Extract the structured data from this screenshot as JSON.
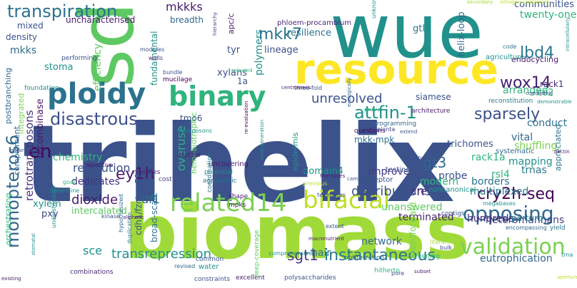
{
  "words": [
    {
      "text": "trihelix",
      "color": "#3b528b"
    },
    {
      "text": "biomass",
      "color": "#a0da39"
    },
    {
      "text": "wue",
      "color": "#21918c"
    },
    {
      "text": "sdd1",
      "color": "#5ec962"
    },
    {
      "text": "resource",
      "color": "#fde725"
    },
    {
      "text": "ploidy",
      "color": "#2c728e"
    },
    {
      "text": "binary",
      "color": "#2fb47c"
    },
    {
      "text": "related14",
      "color": "#7ad151"
    },
    {
      "text": "bifacial",
      "color": "#bddf26"
    },
    {
      "text": "validation",
      "color": "#7ad151"
    },
    {
      "text": "opposing",
      "color": "#31688e"
    },
    {
      "text": "transpiration",
      "color": "#2c728e"
    },
    {
      "text": "monopteros6",
      "color": "#31688e"
    },
    {
      "text": "disastrous",
      "color": "#3b528b"
    },
    {
      "text": "attfin-1",
      "color": "#21918c"
    },
    {
      "text": "instantaneous",
      "color": "#2a788e"
    },
    {
      "text": "cry2h-seq",
      "color": "#440154"
    },
    {
      "text": "distribution1",
      "color": "#3b528b"
    },
    {
      "text": "wox14",
      "color": "#481f70"
    },
    {
      "text": "sparsely",
      "color": "#3b528b"
    },
    {
      "text": "lbd4",
      "color": "#2a788e"
    },
    {
      "text": "mkk7",
      "color": "#2c728e"
    },
    {
      "text": "ey1h",
      "color": "#481a6c"
    },
    {
      "text": "gt3",
      "color": "#31688e"
    },
    {
      "text": "sgt1",
      "color": "#443983"
    },
    {
      "text": "transrepression",
      "color": "#21918c"
    },
    {
      "text": "dioxide",
      "color": "#481a6c"
    },
    {
      "text": "en",
      "color": "#440154"
    },
    {
      "text": "df1",
      "color": "#31688e"
    },
    {
      "text": "revolution",
      "color": "#3b528b"
    },
    {
      "text": "overuse",
      "color": "#2fb47c"
    },
    {
      "text": "unresolved",
      "color": "#3b528b"
    },
    {
      "text": "retrotransposons",
      "color": "#46327e"
    },
    {
      "text": "heteromannans",
      "color": "#414487"
    },
    {
      "text": "eutrophication",
      "color": "#31688e"
    },
    {
      "text": "mkkks",
      "color": "#481a6c"
    },
    {
      "text": "shuffling",
      "color": "#7ad151"
    },
    {
      "text": "arranged",
      "color": "#2fb47c"
    },
    {
      "text": "sce",
      "color": "#21918c"
    },
    {
      "text": "cdh1/fzr/ccs52",
      "color": "#3b528b"
    },
    {
      "text": "broad-scale",
      "color": "#2c728e"
    },
    {
      "text": "hundreds",
      "color": "#482878"
    },
    {
      "text": "mkks",
      "color": "#2c728e"
    },
    {
      "text": "unanswered",
      "color": "#5ec962"
    },
    {
      "text": "conduct",
      "color": "#2c728e"
    },
    {
      "text": "polymers",
      "color": "#21918c"
    },
    {
      "text": "trnas",
      "color": "#2a788e"
    },
    {
      "text": "rsl4",
      "color": "#2fb47c"
    },
    {
      "text": "mapping",
      "color": "#21918c"
    },
    {
      "text": "probe",
      "color": "#3b528b"
    },
    {
      "text": "borders",
      "color": "#2c728e"
    },
    {
      "text": "rack1a",
      "color": "#2fb47c"
    },
    {
      "text": "vital",
      "color": "#31688e"
    },
    {
      "text": "hair",
      "color": "#2c728e"
    },
    {
      "text": "network",
      "color": "#31688e"
    },
    {
      "text": "terminated",
      "color": "#481f70"
    },
    {
      "text": "improve",
      "color": "#443983"
    },
    {
      "text": "modern",
      "color": "#2fb47c"
    },
    {
      "text": "multiplexed",
      "color": "#2a788e"
    },
    {
      "text": "recombinase",
      "color": "#481a6c"
    },
    {
      "text": "dedicates",
      "color": "#46327e"
    },
    {
      "text": "chemistry",
      "color": "#2fb47c"
    },
    {
      "text": "twenty-one",
      "color": "#2fb47c"
    },
    {
      "text": "communities",
      "color": "#3b528b"
    },
    {
      "text": "gtl",
      "color": "#2c728e"
    },
    {
      "text": "helix-loop",
      "color": "#31688e"
    },
    {
      "text": "resilience",
      "color": "#2c728e"
    },
    {
      "text": "lineage",
      "color": "#3b528b"
    },
    {
      "text": "mkk-mpk",
      "color": "#2c728e"
    },
    {
      "text": "trichomes",
      "color": "#3b528b"
    },
    {
      "text": "efficiency",
      "color": "#5ec962"
    },
    {
      "text": "stoma",
      "color": "#21918c"
    },
    {
      "text": "xylans",
      "color": "#3b528b"
    },
    {
      "text": "fundamental",
      "color": "#21918c"
    },
    {
      "text": "uncharacterised",
      "color": "#481a6c"
    },
    {
      "text": "density",
      "color": "#3b528b"
    },
    {
      "text": "mixed",
      "color": "#3b528b"
    },
    {
      "text": "tmo6",
      "color": "#3b528b"
    },
    {
      "text": "co2",
      "color": "#2fb47c"
    },
    {
      "text": "rack1",
      "color": "#482878"
    },
    {
      "text": "siamese",
      "color": "#3b528b"
    },
    {
      "text": "tyr",
      "color": "#3b528b"
    },
    {
      "text": "1a",
      "color": "#3b528b"
    },
    {
      "text": "cre",
      "color": "#482878"
    },
    {
      "text": "intercalated",
      "color": "#5ec962"
    },
    {
      "text": "domain4",
      "color": "#21918c"
    },
    {
      "text": "feedforward",
      "color": "#7ad151"
    },
    {
      "text": "postbranching",
      "color": "#31688e"
    },
    {
      "text": "integrated",
      "color": "#7ad151"
    },
    {
      "text": "orchestrating",
      "color": "#2fb47c"
    },
    {
      "text": "complement",
      "color": "#31688e"
    },
    {
      "text": "xylem",
      "color": "#21918c"
    },
    {
      "text": "pxy",
      "color": "#414487"
    },
    {
      "text": "breadth",
      "color": "#31688e"
    },
    {
      "text": "endocycling",
      "color": "#481a6c"
    },
    {
      "text": "agriculture",
      "color": "#21918c"
    },
    {
      "text": "appreciated",
      "color": "#2c728e"
    },
    {
      "text": "perturb",
      "color": "#2a788e"
    },
    {
      "text": "epidermis",
      "color": "#21918c"
    },
    {
      "text": "hemi-biotrophic",
      "color": "#5ec962"
    },
    {
      "text": "apc/c",
      "color": "#481a6c"
    },
    {
      "text": "phloem-procambium",
      "color": "#482878"
    },
    {
      "text": "reconstitution",
      "color": "#2a788e"
    },
    {
      "text": "testing",
      "color": "#3b528b"
    },
    {
      "text": "systematic",
      "color": "#31688e"
    },
    {
      "text": "noncanonical",
      "color": "#21918c"
    },
    {
      "text": "architecture",
      "color": "#481a6c"
    },
    {
      "text": "receptor",
      "color": "#3b528b"
    },
    {
      "text": "questions",
      "color": "#440154"
    },
    {
      "text": "programming",
      "color": "#31688e"
    },
    {
      "text": "uncovering",
      "color": "#481a6c"
    },
    {
      "text": "coordination",
      "color": "#2c728e"
    },
    {
      "text": "potential",
      "color": "#21918c"
    },
    {
      "text": "agronomic",
      "color": "#2c728e"
    },
    {
      "text": "modifies",
      "color": "#482878"
    },
    {
      "text": "cost",
      "color": "#414487"
    },
    {
      "text": "shape",
      "color": "#481a6c"
    },
    {
      "text": "mpks",
      "color": "#481a6c"
    },
    {
      "text": "water",
      "color": "#21918c"
    },
    {
      "text": "common",
      "color": "#3b528b"
    },
    {
      "text": "combinations",
      "color": "#482878"
    },
    {
      "text": "constraints",
      "color": "#3b528b"
    },
    {
      "text": "excellent",
      "color": "#481a6c"
    },
    {
      "text": "polysaccharides",
      "color": "#3b528b"
    },
    {
      "text": "deep-coverage",
      "color": "#5ec962"
    },
    {
      "text": "optimization",
      "color": "#31688e"
    },
    {
      "text": "screening",
      "color": "#2fb47c"
    },
    {
      "text": "hitherto",
      "color": "#2fb47c"
    },
    {
      "text": "contigs",
      "color": "#3b528b"
    },
    {
      "text": "encompassing",
      "color": "#31688e"
    },
    {
      "text": "megabases",
      "color": "#21918c"
    },
    {
      "text": "yield",
      "color": "#2c728e"
    },
    {
      "text": "bundle",
      "color": "#3b528b"
    },
    {
      "text": "mucilage",
      "color": "#440154"
    },
    {
      "text": "performing",
      "color": "#3b528b"
    },
    {
      "text": "modules",
      "color": "#3b528b"
    },
    {
      "text": "walls",
      "color": "#481a6c"
    },
    {
      "text": "foundation",
      "color": "#21918c"
    },
    {
      "text": "transposons",
      "color": "#21918c"
    },
    {
      "text": "daytime",
      "color": "#481a6c"
    },
    {
      "text": "repetitive",
      "color": "#481a6c"
    },
    {
      "text": "determine",
      "color": "#21918c"
    },
    {
      "text": "goal",
      "color": "#2fb47c"
    },
    {
      "text": "kinase",
      "color": "#3b528b"
    },
    {
      "text": "hypothesized",
      "color": "#31688e"
    },
    {
      "text": "duplication",
      "color": "#2c728e"
    },
    {
      "text": "understanding",
      "color": "#21918c"
    },
    {
      "text": "revised",
      "color": "#31688e"
    },
    {
      "text": "comprehensive",
      "color": "#21918c"
    },
    {
      "text": "extent",
      "color": "#3b528b"
    },
    {
      "text": "literature",
      "color": "#a0da39"
    },
    {
      "text": "bulk",
      "color": "#414487"
    },
    {
      "text": "previous",
      "color": "#bddf26"
    },
    {
      "text": "telomeres",
      "color": "#3b528b"
    },
    {
      "text": "comparison",
      "color": "#3b528b"
    },
    {
      "text": "planta",
      "color": "#414487"
    },
    {
      "text": "prove",
      "color": "#2fb47c"
    },
    {
      "text": "three-fold",
      "color": "#3b528b"
    },
    {
      "text": "unknown",
      "color": "#21918c"
    },
    {
      "text": "code",
      "color": "#2c728e"
    },
    {
      "text": "completely",
      "color": "#3b528b"
    },
    {
      "text": "demonstrable",
      "color": "#21918c"
    },
    {
      "text": "pectin",
      "color": "#481a6c"
    },
    {
      "text": "eukaryotes",
      "color": "#3b528b"
    },
    {
      "text": "stomatal",
      "color": "#21918c"
    },
    {
      "text": "aliphatic",
      "color": "#481a6c"
    },
    {
      "text": "secondary",
      "color": "#a0da39"
    },
    {
      "text": "nitrogen-containing",
      "color": "#bddf26"
    },
    {
      "text": "intracellularly",
      "color": "#21918c"
    },
    {
      "text": "macronutrient",
      "color": "#481a6c"
    },
    {
      "text": "pore",
      "color": "#3b528b"
    },
    {
      "text": "aperture",
      "color": "#bddf26"
    },
    {
      "text": "fine-tunes",
      "color": "#481a6c"
    },
    {
      "text": "cambium",
      "color": "#3b528b"
    },
    {
      "text": "subset",
      "color": "#481a6c"
    },
    {
      "text": "trna",
      "color": "#21918c"
    },
    {
      "text": "existing",
      "color": "#481a6c"
    },
    {
      "text": "hierarchy",
      "color": "#414487"
    },
    {
      "text": "ecologically",
      "color": "#31688e"
    },
    {
      "text": "re-evaluation",
      "color": "#440154"
    },
    {
      "text": "next-generation",
      "color": "#21918c"
    },
    {
      "text": "extend",
      "color": "#3b528b"
    },
    {
      "text": "selected",
      "color": "#2fb47c"
    },
    {
      "text": "centromeric",
      "color": "#481a6c"
    }
  ]
}
